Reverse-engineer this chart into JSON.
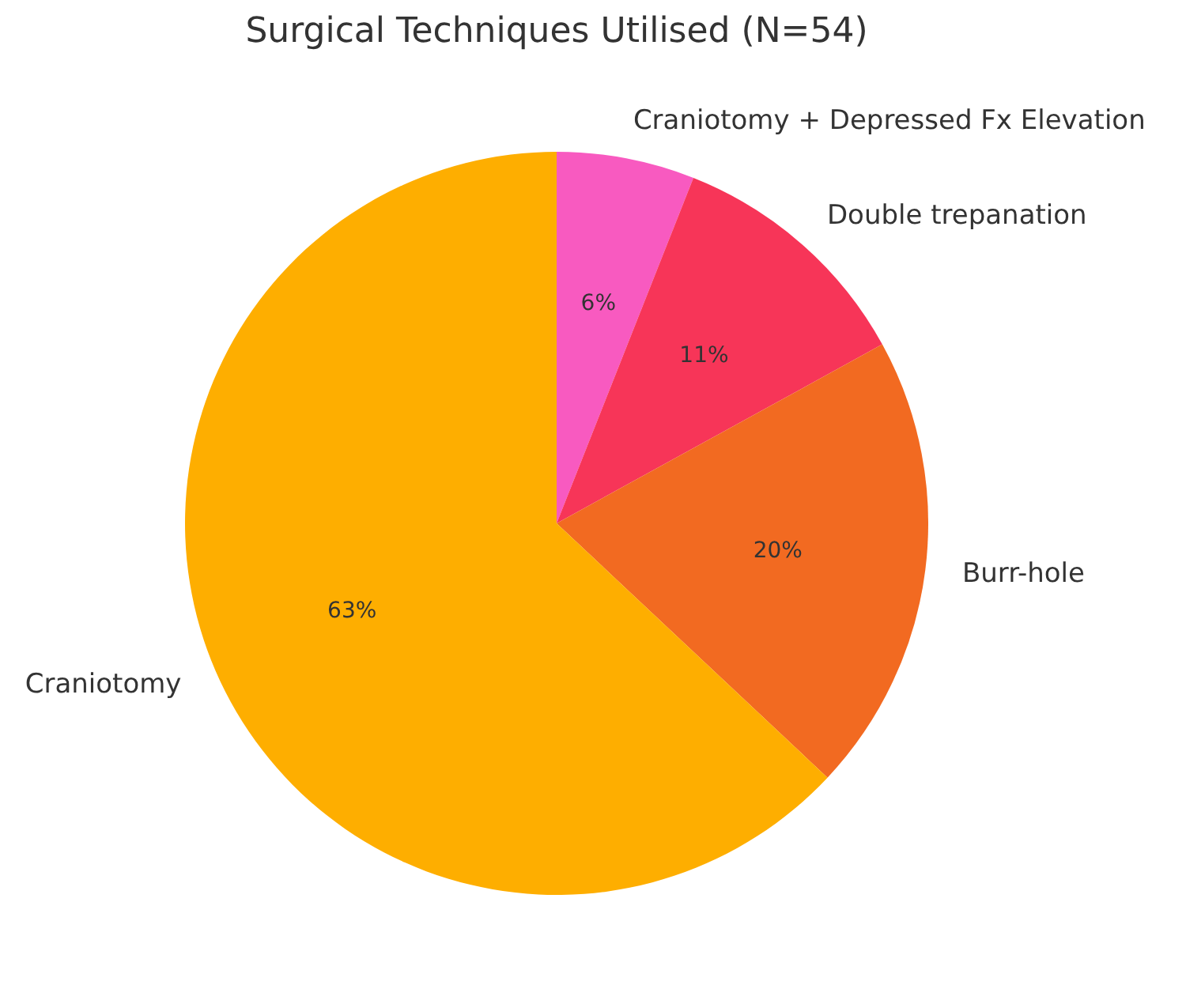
{
  "chart_data": {
    "type": "pie",
    "title": "Surgical Techniques Utilised (N=54)",
    "categories": [
      "Craniotomy + Depressed Fx Elevation",
      "Double trepanation",
      "Burr-hole",
      "Craniotomy"
    ],
    "values": [
      6,
      11,
      20,
      63
    ],
    "colors": [
      "#f85ac0",
      "#f73558",
      "#f26a21",
      "#feae00"
    ],
    "value_labels": [
      "6%",
      "11%",
      "20%",
      "63%"
    ],
    "legend": false
  }
}
